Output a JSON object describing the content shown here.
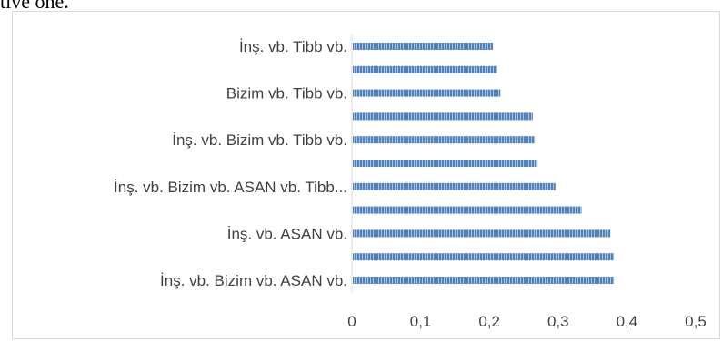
{
  "page_fragment": "tive one.",
  "chart_data": {
    "type": "bar",
    "orientation": "horizontal",
    "category_labels": [
      "İnş. vb.  Bizim vb.  ASAN vb.",
      "",
      "İnş. vb.  ASAN vb.",
      "",
      "İnş. vb.  Bizim vb.  ASAN vb.  Tibb...",
      "",
      "İnş. vb.  Bizim vb.  Tibb vb.",
      "",
      "Bizim vb.  Tibb vb.",
      "",
      "İnş. vb.  Tibb vb."
    ],
    "values": [
      0.381,
      0.381,
      0.376,
      0.334,
      0.296,
      0.27,
      0.266,
      0.263,
      0.216,
      0.211,
      0.205
    ],
    "xlim": [
      0,
      0.5
    ],
    "xticks": [
      "0",
      "0,1",
      "0,2",
      "0,3",
      "0,4",
      "0,5"
    ],
    "grid": false,
    "bar_color": "#4f81bd",
    "bar_stripe_color": "#a7c0de"
  }
}
